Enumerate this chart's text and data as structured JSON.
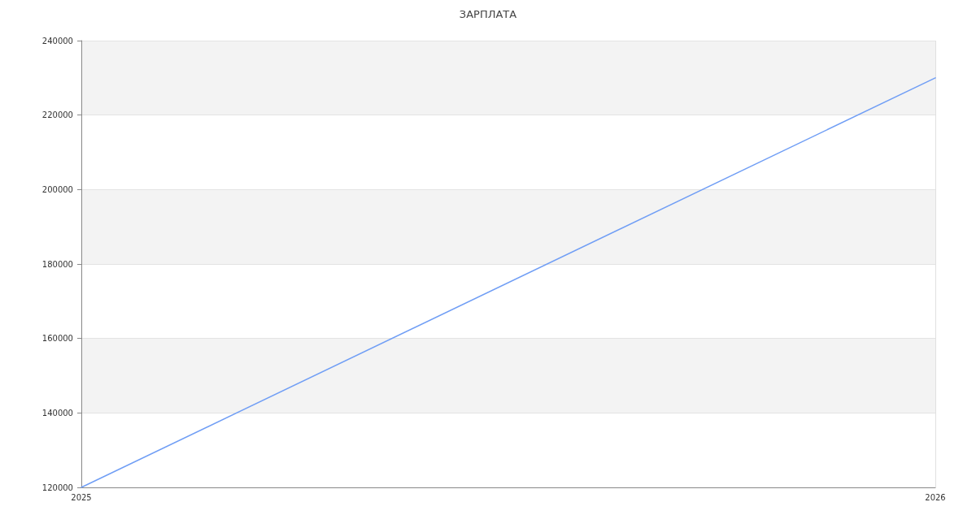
{
  "chart_data": {
    "type": "line",
    "title": "ЗАРПЛАТА",
    "x": [
      "2025",
      "2026"
    ],
    "series": [
      {
        "color": "#709ef5",
        "values": [
          120000,
          230000
        ]
      }
    ],
    "xlim": [
      "2025",
      "2026"
    ],
    "xticks": [
      "2025",
      "2026"
    ],
    "ylim": [
      120000,
      240000
    ],
    "yticks": [
      120000,
      140000,
      160000,
      180000,
      200000,
      220000,
      240000
    ],
    "grid": true
  }
}
